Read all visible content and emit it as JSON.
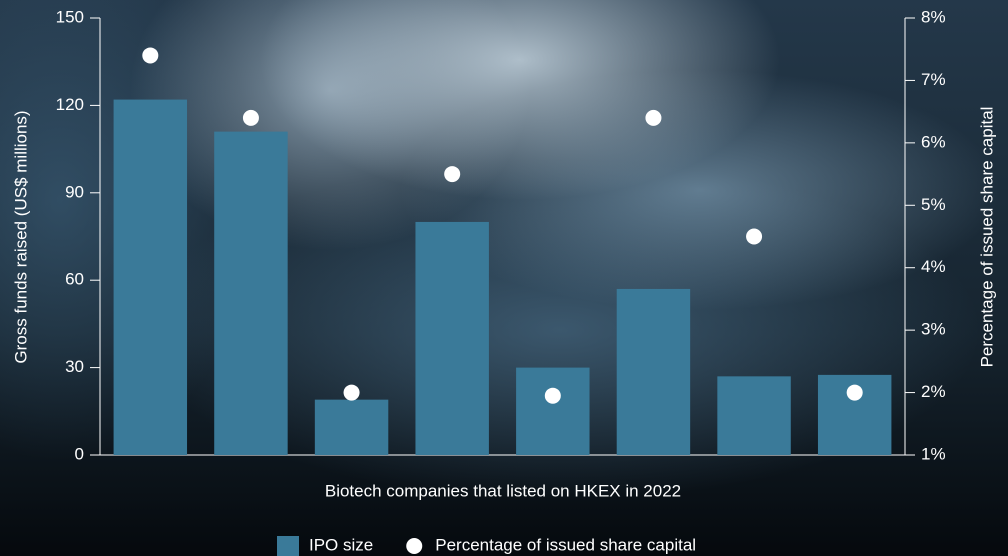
{
  "chart_data": {
    "type": "bar",
    "x_label": "Biotech companies that listed on HKEX in 2022",
    "y_label": "Gross funds raised (US$ millions)",
    "y2_label": "Percentage of issued share capital",
    "categories": [
      null,
      null,
      null,
      null,
      null,
      null,
      null,
      null
    ],
    "series": [
      {
        "name": "IPO size",
        "type": "bar",
        "color": "#3a7a99",
        "values": [
          122,
          111,
          19,
          80,
          30,
          57,
          27,
          27.5
        ]
      },
      {
        "name": "Percentage of issued share capital",
        "type": "scatter",
        "axis": "y2",
        "color": "#ffffff",
        "values": [
          7.4,
          6.4,
          2.0,
          5.5,
          1.95,
          6.4,
          4.5,
          2.0
        ]
      }
    ],
    "ylim": [
      0,
      150
    ],
    "yticks": [
      0,
      30,
      60,
      90,
      120,
      150
    ],
    "y2lim": [
      1,
      8
    ],
    "y2ticks": [
      {
        "value": 1,
        "label": "1%"
      },
      {
        "value": 2,
        "label": "2%"
      },
      {
        "value": 3,
        "label": "3%"
      },
      {
        "value": 4,
        "label": "4%"
      },
      {
        "value": 5,
        "label": "5%"
      },
      {
        "value": 6,
        "label": "6%"
      },
      {
        "value": 7,
        "label": "7%"
      },
      {
        "value": 8,
        "label": "8%"
      }
    ],
    "legend": "bottom"
  }
}
